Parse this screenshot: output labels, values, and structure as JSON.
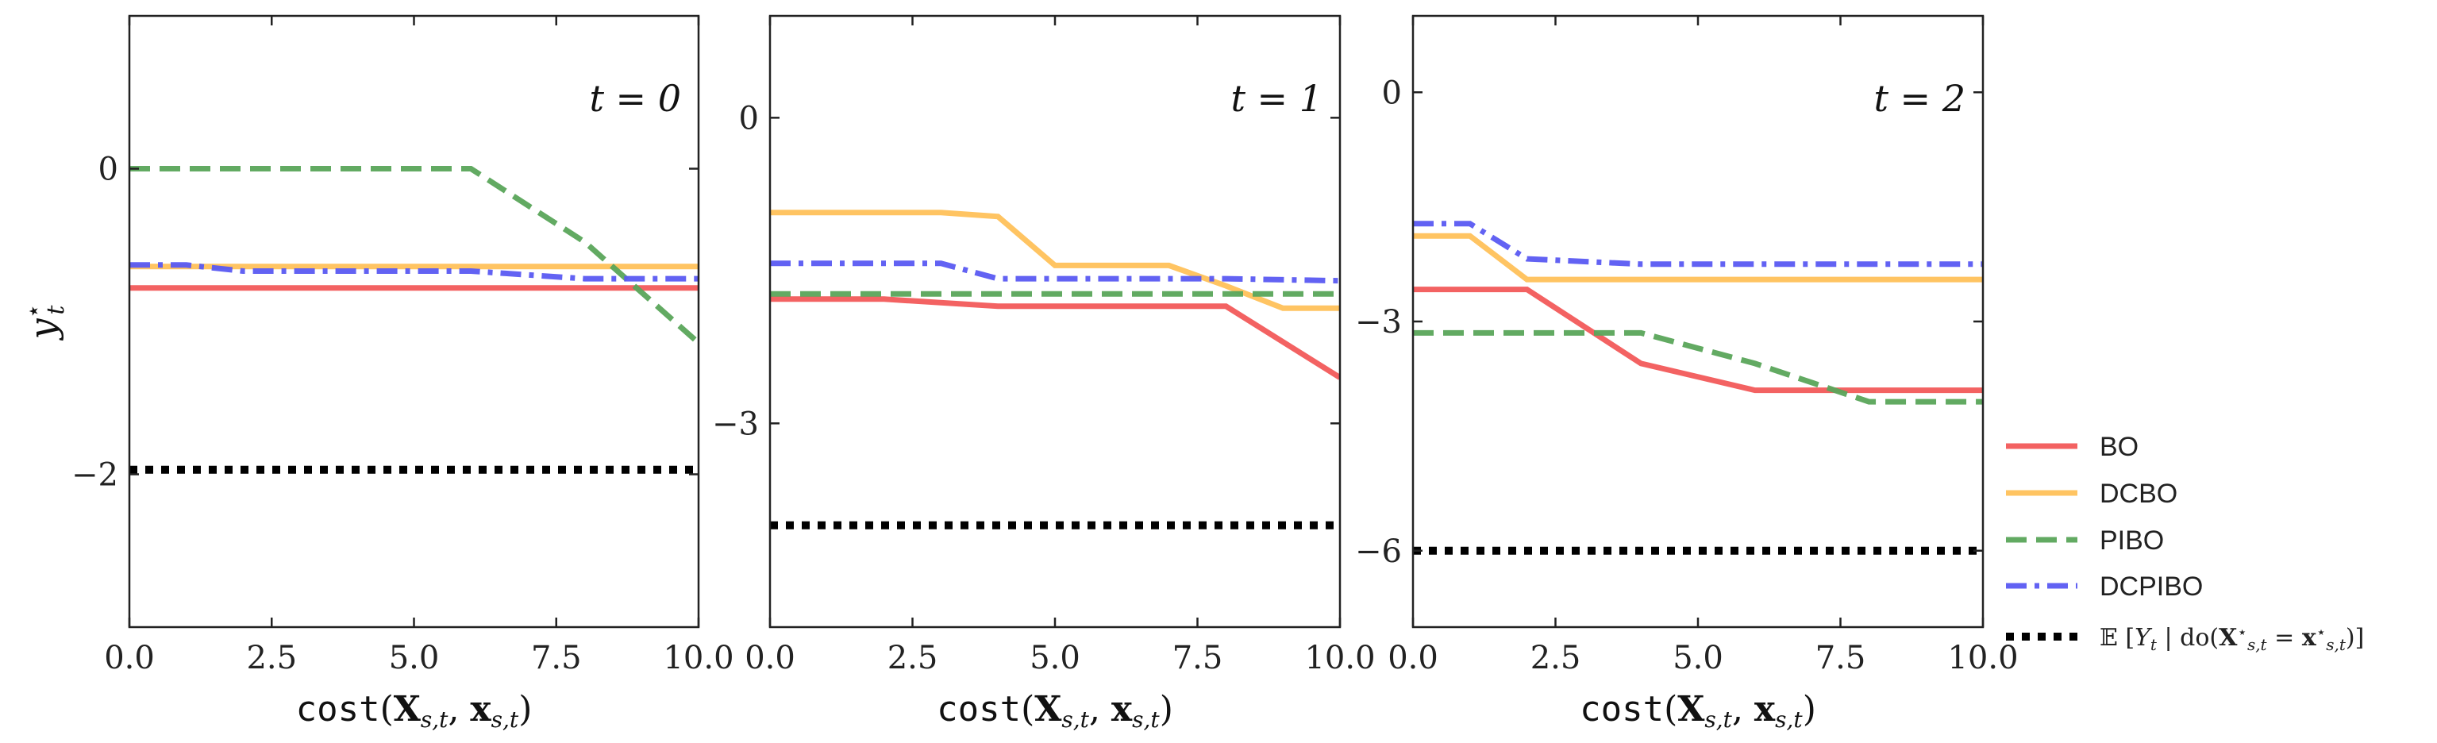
{
  "chart_data": [
    {
      "type": "line",
      "panel_label": "t = 0",
      "xlabel": "cost(X_{s,t}, x_{s,t})",
      "ylabel": "y*_t",
      "xlim": [
        0,
        10
      ],
      "ylim": [
        -3,
        1
      ],
      "xticks": [
        "0.0",
        "2.5",
        "5.0",
        "7.5",
        "10.0"
      ],
      "xtick_values": [
        0,
        2.5,
        5,
        7.5,
        10
      ],
      "yticks": [
        "0",
        "−2"
      ],
      "ytick_values": [
        0,
        -2
      ],
      "series": [
        {
          "key": "bo",
          "x": [
            0,
            10
          ],
          "y": [
            -0.78,
            -0.78
          ]
        },
        {
          "key": "dcbo",
          "x": [
            0,
            10
          ],
          "y": [
            -0.64,
            -0.64
          ]
        },
        {
          "key": "pibo",
          "x": [
            0,
            6,
            8,
            10
          ],
          "y": [
            0.0,
            0.0,
            -0.48,
            -1.14
          ]
        },
        {
          "key": "dcpibo",
          "x": [
            0,
            1,
            2,
            6,
            8,
            10
          ],
          "y": [
            -0.63,
            -0.63,
            -0.67,
            -0.67,
            -0.72,
            -0.72
          ]
        },
        {
          "key": "expectation",
          "x": [
            0,
            10
          ],
          "y": [
            -1.97,
            -1.97
          ]
        }
      ]
    },
    {
      "type": "line",
      "panel_label": "t = 1",
      "xlabel": "cost(X_{s,t}, x_{s,t})",
      "xlim": [
        0,
        10
      ],
      "ylim": [
        -5,
        1
      ],
      "xticks": [
        "0.0",
        "2.5",
        "5.0",
        "7.5",
        "10.0"
      ],
      "xtick_values": [
        0,
        2.5,
        5,
        7.5,
        10
      ],
      "yticks": [
        "0",
        "−3"
      ],
      "ytick_values": [
        0,
        -3
      ],
      "series": [
        {
          "key": "bo",
          "x": [
            0,
            2,
            4,
            8,
            10
          ],
          "y": [
            -1.78,
            -1.78,
            -1.85,
            -1.85,
            -2.55
          ]
        },
        {
          "key": "dcbo",
          "x": [
            0,
            3,
            4,
            5,
            7,
            8,
            9,
            10
          ],
          "y": [
            -0.93,
            -0.93,
            -0.97,
            -1.45,
            -1.45,
            -1.65,
            -1.87,
            -1.87
          ]
        },
        {
          "key": "pibo",
          "x": [
            0,
            10
          ],
          "y": [
            -1.73,
            -1.73
          ]
        },
        {
          "key": "dcpibo",
          "x": [
            0,
            3,
            4,
            8,
            10
          ],
          "y": [
            -1.43,
            -1.43,
            -1.58,
            -1.58,
            -1.6
          ]
        },
        {
          "key": "expectation",
          "x": [
            0,
            10
          ],
          "y": [
            -4.0,
            -4.0
          ]
        }
      ]
    },
    {
      "type": "line",
      "panel_label": "t = 2",
      "xlabel": "cost(X_{s,t}, x_{s,t})",
      "xlim": [
        0,
        10
      ],
      "ylim": [
        -7,
        1
      ],
      "xticks": [
        "0.0",
        "2.5",
        "5.0",
        "7.5",
        "10.0"
      ],
      "xtick_values": [
        0,
        2.5,
        5,
        7.5,
        10
      ],
      "yticks": [
        "0",
        "−3",
        "−6"
      ],
      "ytick_values": [
        0,
        -3,
        -6
      ],
      "series": [
        {
          "key": "bo",
          "x": [
            0,
            2,
            4,
            6,
            10
          ],
          "y": [
            -2.58,
            -2.58,
            -3.55,
            -3.9,
            -3.9
          ]
        },
        {
          "key": "dcbo",
          "x": [
            0,
            1,
            2,
            10
          ],
          "y": [
            -1.88,
            -1.88,
            -2.45,
            -2.45
          ]
        },
        {
          "key": "pibo",
          "x": [
            0,
            4,
            6,
            8,
            10
          ],
          "y": [
            -3.15,
            -3.15,
            -3.55,
            -4.05,
            -4.05
          ]
        },
        {
          "key": "dcpibo",
          "x": [
            0,
            1,
            2,
            4,
            10
          ],
          "y": [
            -1.72,
            -1.72,
            -2.18,
            -2.25,
            -2.25
          ]
        },
        {
          "key": "expectation",
          "x": [
            0,
            10
          ],
          "y": [
            -6.0,
            -6.0
          ]
        }
      ]
    }
  ],
  "legend": {
    "placement": "right",
    "entries": [
      {
        "key": "bo",
        "label": "BO",
        "color": "#f25a5a",
        "style": "solid"
      },
      {
        "key": "dcbo",
        "label": "DCBO",
        "color": "#ffc15a",
        "style": "solid"
      },
      {
        "key": "pibo",
        "label": "PIBO",
        "color": "#5aa55a",
        "style": "dashed"
      },
      {
        "key": "dcpibo",
        "label": "DCPIBO",
        "color": "#5a5af2",
        "style": "dashdot"
      },
      {
        "key": "expectation",
        "label": "𝔼[Y_t | do(X*_{s,t} = x*_{s,t})]",
        "color": "#000000",
        "style": "dotted"
      }
    ]
  }
}
